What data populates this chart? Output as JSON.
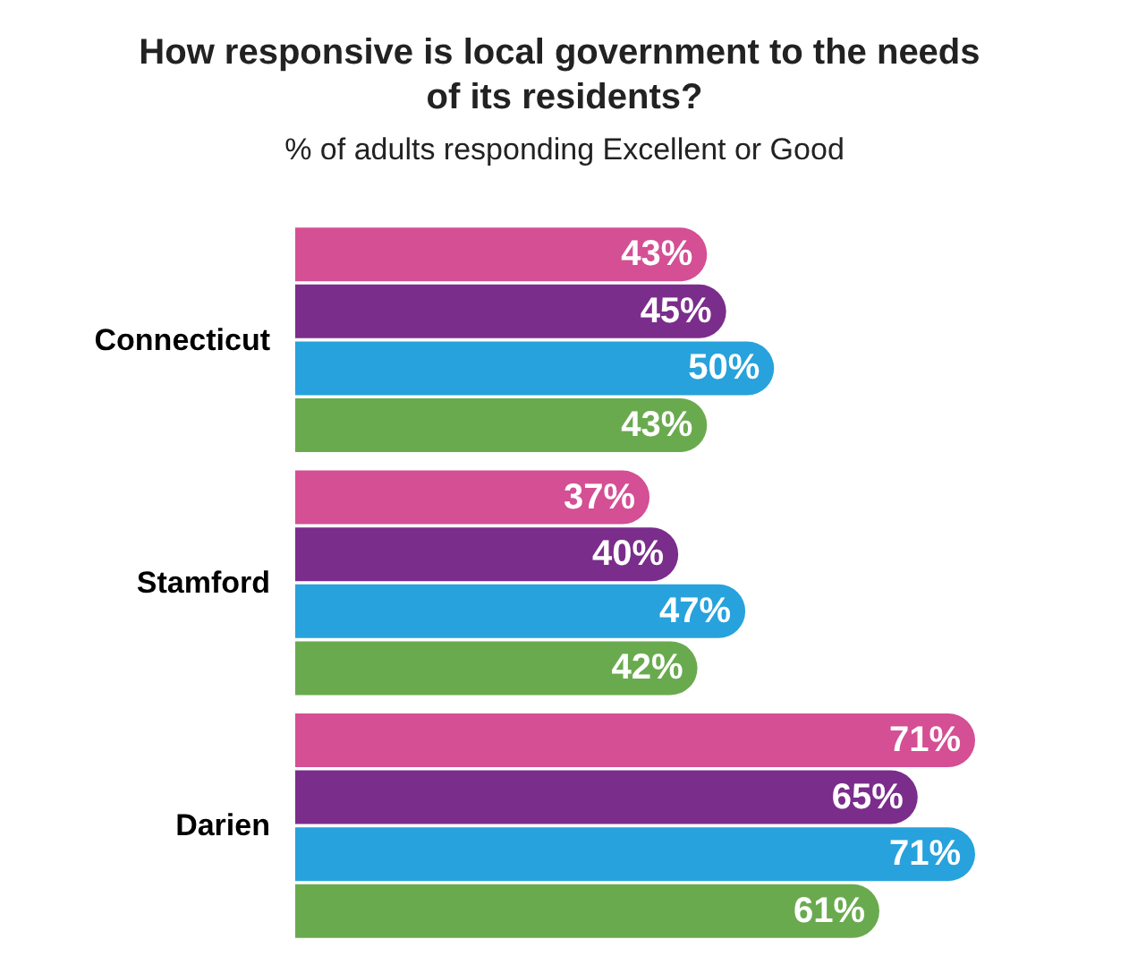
{
  "chart_data": {
    "type": "bar",
    "orientation": "horizontal",
    "title": "How responsive is local government to the needs of its residents?",
    "subtitle": "% of adults responding Excellent or Good",
    "categories": [
      "Connecticut",
      "Stamford",
      "Darien"
    ],
    "tick_labels": "y",
    "series": [
      {
        "color": "#d44f94",
        "values": [
          43,
          37,
          71
        ],
        "value_labels": [
          "43%",
          "37%",
          "71%"
        ]
      },
      {
        "color": "#7b2d8b",
        "values": [
          45,
          40,
          65
        ],
        "value_labels": [
          "45%",
          "40%",
          "65%"
        ]
      },
      {
        "color": "#27a2dc",
        "values": [
          50,
          47,
          71
        ],
        "value_labels": [
          "50%",
          "47%",
          "71%"
        ]
      },
      {
        "color": "#6aaa4f",
        "values": [
          43,
          42,
          61
        ],
        "value_labels": [
          "43%",
          "42%",
          "61%"
        ]
      }
    ]
  }
}
